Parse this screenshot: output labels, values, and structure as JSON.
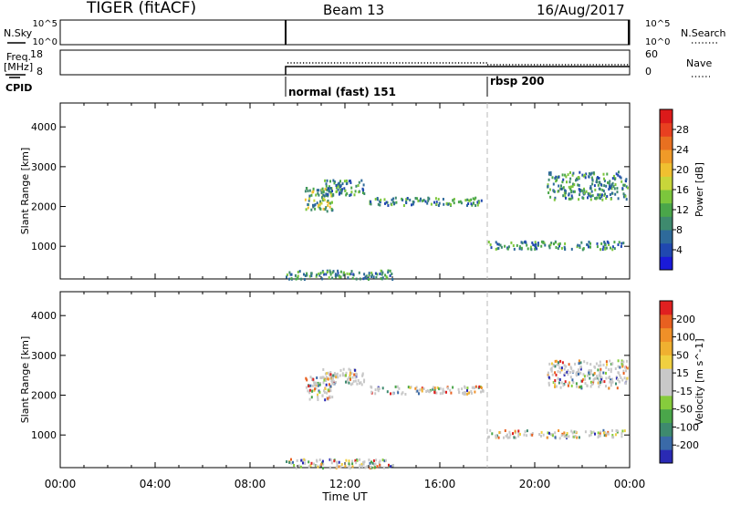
{
  "header": {
    "radar": "TIGER (fitACF)",
    "beam": "Beam 13",
    "date": "16/Aug/2017"
  },
  "status_panel": {
    "nsky_label": "N.Sky",
    "nsky_ticks": [
      "10^5",
      "10^0"
    ],
    "nsearch_label": "N.Search",
    "freq_label_top": "Freq.",
    "freq_label_unit": "[MHz]",
    "freq_ticks": [
      "18",
      "8"
    ],
    "nave_ticks": [
      "60",
      "0"
    ],
    "nave_label": "Nave",
    "cpid_label": "CPID",
    "modes": [
      {
        "name": "normal (fast) 151",
        "start_hour": 9.5
      },
      {
        "name": "rbsp 200",
        "start_hour": 18.0
      }
    ]
  },
  "x_axis": {
    "label": "Time UT",
    "ticks": [
      "00:00",
      "04:00",
      "08:00",
      "12:00",
      "16:00",
      "20:00",
      "00:00"
    ],
    "range_hours": [
      0,
      24
    ]
  },
  "chart_data": [
    {
      "type": "heatmap",
      "ylabel": "Slant Range [km]",
      "yticks": [
        1000,
        2000,
        3000,
        4000
      ],
      "ylim": [
        180,
        4600
      ],
      "xlim_hours": [
        0,
        24
      ],
      "colorbar": {
        "label": "Power [dB]",
        "ticks": [
          "28",
          "24",
          "20",
          "16",
          "12",
          "8",
          "4"
        ],
        "colors": [
          "#1a1ad8",
          "#2048b0",
          "#2e6a9a",
          "#3e8a6e",
          "#4aa64a",
          "#7cc63c",
          "#c8d63a",
          "#f0c030",
          "#f09a28",
          "#e87020",
          "#e84020",
          "#dc1a1a"
        ]
      },
      "clusters": [
        {
          "hours": [
            10.3,
            11.5
          ],
          "range": [
            1900,
            2500
          ]
        },
        {
          "hours": [
            11.0,
            12.8
          ],
          "range": [
            2300,
            2700
          ]
        },
        {
          "hours": [
            13.0,
            17.8
          ],
          "range": [
            2050,
            2250
          ]
        },
        {
          "hours": [
            9.5,
            14.0
          ],
          "range": [
            200,
            420
          ]
        },
        {
          "hours": [
            18.0,
            23.8
          ],
          "range": [
            950,
            1150
          ]
        },
        {
          "hours": [
            20.5,
            23.9
          ],
          "range": [
            2200,
            2900
          ]
        }
      ]
    },
    {
      "type": "heatmap",
      "ylabel": "Slant Range [km]",
      "yticks": [
        1000,
        2000,
        3000,
        4000
      ],
      "ylim": [
        180,
        4600
      ],
      "xlim_hours": [
        0,
        24
      ],
      "colorbar": {
        "label": "Velocity [m s^-1]",
        "ticks": [
          "200",
          "100",
          "50",
          "15",
          "-15",
          "-50",
          "-100",
          "-200"
        ],
        "colors": [
          "#2a2ab4",
          "#3a6aa8",
          "#3e8a6e",
          "#4aa64a",
          "#86cc3c",
          "#c8c8c8",
          "#c8c8c8",
          "#f0d040",
          "#f0b030",
          "#f09028",
          "#e86020",
          "#e02020"
        ]
      },
      "clusters": [
        {
          "hours": [
            10.3,
            11.5
          ],
          "range": [
            1900,
            2500
          ]
        },
        {
          "hours": [
            11.0,
            12.8
          ],
          "range": [
            2300,
            2700
          ]
        },
        {
          "hours": [
            13.0,
            17.8
          ],
          "range": [
            2050,
            2250
          ]
        },
        {
          "hours": [
            9.5,
            14.0
          ],
          "range": [
            200,
            420
          ]
        },
        {
          "hours": [
            18.0,
            23.8
          ],
          "range": [
            950,
            1150
          ]
        },
        {
          "hours": [
            20.5,
            23.9
          ],
          "range": [
            2200,
            2900
          ]
        }
      ]
    }
  ]
}
